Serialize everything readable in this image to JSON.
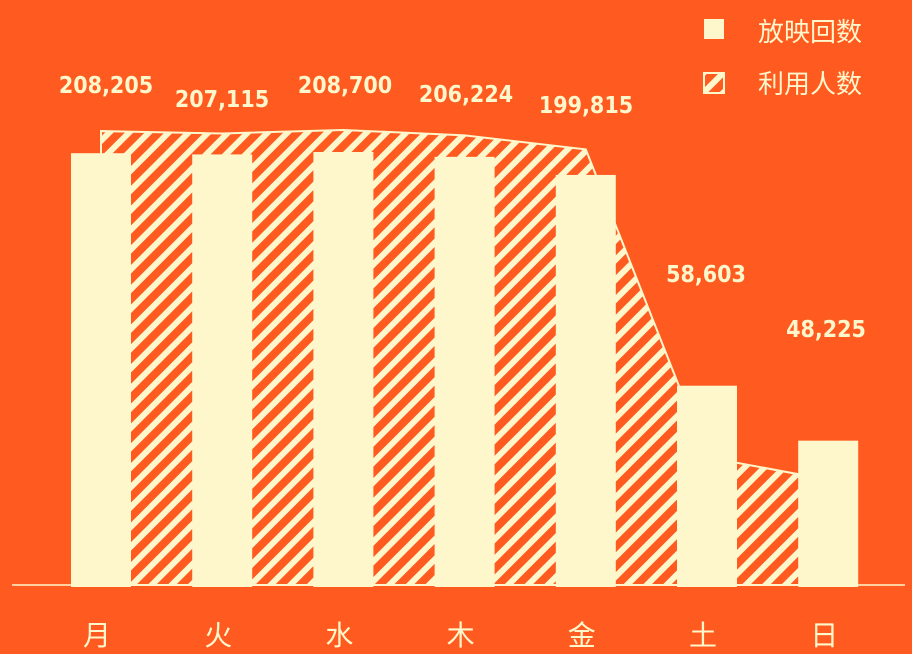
{
  "colors": {
    "background": "#FF5A1F",
    "bar": "#FFF7CC",
    "stripe": "#FFF7CC",
    "axis": "#FFF7CC",
    "text": "#FFF7CC"
  },
  "legend": {
    "items": [
      {
        "label": "放映回数",
        "icon": "solid-square-icon"
      },
      {
        "label": "利用人数",
        "icon": "hatched-square-icon"
      }
    ]
  },
  "chart_data": {
    "type": "bar",
    "categories": [
      "月",
      "火",
      "水",
      "木",
      "金",
      "土",
      "日"
    ],
    "series": [
      {
        "name": "放映回数",
        "type": "bar",
        "values": [
          7150,
          7130,
          7170,
          7090,
          6790,
          3300,
          2390
        ]
      },
      {
        "name": "利用人数",
        "type": "area",
        "values": [
          208205,
          207115,
          208700,
          206224,
          199815,
          58603,
          48225
        ]
      }
    ],
    "data_labels": [
      "208,205",
      "207,115",
      "208,700",
      "206,224",
      "199,815",
      "58,603",
      "48,225"
    ],
    "grid": false,
    "legend_position": "top-right"
  }
}
